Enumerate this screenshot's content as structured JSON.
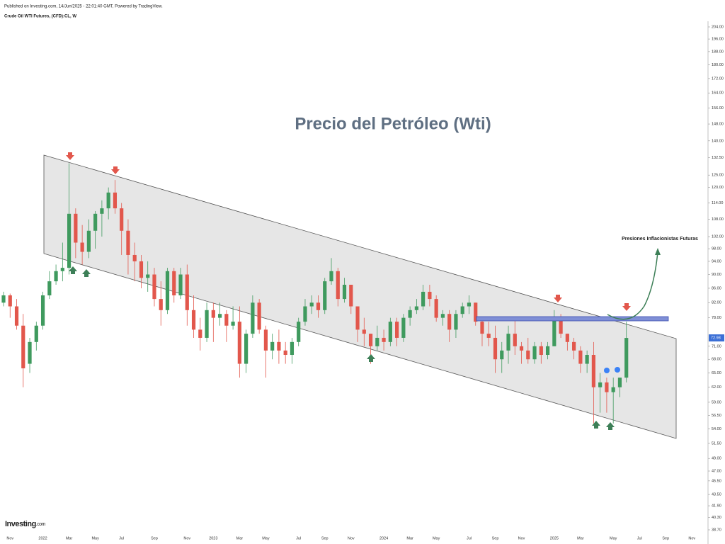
{
  "header": {
    "published": "Published on Investing.com, 14/Jun/2025 - 22:01:40 GMT, Powered by TradingView.",
    "instrument": "Crude Oil WTI Futures, (CFD):CL, W"
  },
  "logo": {
    "name": "Investing",
    "suffix": ".com"
  },
  "chart_data": {
    "type": "candlestick",
    "title": "Precio del Petróleo (Wti)",
    "annotation": "Presiones Inflacionistas Futuras",
    "log_scale": true,
    "up_color": "#3f9a5e",
    "down_color": "#e2574c",
    "ylim": [
      38.7,
      204
    ],
    "yticks": [
      {
        "value": 204,
        "label": "204.00"
      },
      {
        "value": 196,
        "label": "196.00"
      },
      {
        "value": 188,
        "label": "188.00"
      },
      {
        "value": 180,
        "label": "180.00"
      },
      {
        "value": 172,
        "label": "172.00"
      },
      {
        "value": 164,
        "label": "164.00"
      },
      {
        "value": 156,
        "label": "156.00"
      },
      {
        "value": 148,
        "label": "148.00"
      },
      {
        "value": 140,
        "label": "140.00"
      },
      {
        "value": 132.5,
        "label": "132.50"
      },
      {
        "value": 125,
        "label": "125.00"
      },
      {
        "value": 120,
        "label": "120.00"
      },
      {
        "value": 114,
        "label": "114.00"
      },
      {
        "value": 108,
        "label": "108.00"
      },
      {
        "value": 102,
        "label": "102.00"
      },
      {
        "value": 98,
        "label": "98.00"
      },
      {
        "value": 94,
        "label": "94.00"
      },
      {
        "value": 90,
        "label": "90.00"
      },
      {
        "value": 86,
        "label": "86.00"
      },
      {
        "value": 82,
        "label": "82.00"
      },
      {
        "value": 78,
        "label": "78.00"
      },
      {
        "value": 71,
        "label": "71.00"
      },
      {
        "value": 68,
        "label": "68.00"
      },
      {
        "value": 65,
        "label": "65.00"
      },
      {
        "value": 62,
        "label": "62.00"
      },
      {
        "value": 59,
        "label": "59.00"
      },
      {
        "value": 56.5,
        "label": "56.50"
      },
      {
        "value": 54,
        "label": "54.00"
      },
      {
        "value": 51.5,
        "label": "51.50"
      },
      {
        "value": 49,
        "label": "49.00"
      },
      {
        "value": 47,
        "label": "47.00"
      },
      {
        "value": 45.5,
        "label": "45.50"
      },
      {
        "value": 43.5,
        "label": "43.50"
      },
      {
        "value": 41.9,
        "label": "41.90"
      },
      {
        "value": 40.3,
        "label": "40.30"
      },
      {
        "value": 38.7,
        "label": "38.70"
      }
    ],
    "categories": [
      null,
      "Nov",
      null,
      null,
      null,
      null,
      "2022",
      null,
      null,
      null,
      "Mar",
      null,
      null,
      null,
      "May",
      null,
      null,
      null,
      "Jul",
      null,
      null,
      null,
      null,
      "Sep",
      null,
      null,
      null,
      null,
      "Nov",
      null,
      null,
      null,
      "2023",
      null,
      null,
      null,
      "Mar",
      null,
      null,
      null,
      "May",
      null,
      null,
      null,
      null,
      "Jul",
      null,
      null,
      null,
      "Sep",
      null,
      null,
      null,
      "Nov",
      null,
      null,
      null,
      null,
      "2024",
      null,
      null,
      null,
      "Mar",
      null,
      null,
      null,
      "May",
      null,
      null,
      null,
      null,
      "Jul",
      null,
      null,
      null,
      "Sep",
      null,
      null,
      null,
      "Nov",
      null,
      null,
      null,
      null,
      "2025",
      null,
      null,
      null,
      "Mar",
      null,
      null,
      null,
      null,
      "May",
      null,
      null,
      null,
      "Jul",
      null,
      null,
      null,
      "Sep",
      null,
      null,
      null,
      "Nov"
    ],
    "open": [
      82,
      84,
      81,
      76,
      67,
      72,
      76,
      84,
      88,
      91,
      92,
      110,
      100,
      97,
      104,
      110,
      112,
      118,
      112,
      104,
      96,
      94,
      89,
      90,
      83,
      80,
      91,
      84,
      90,
      80,
      75,
      73,
      80,
      78,
      79,
      76,
      77,
      67,
      74,
      82,
      75,
      70,
      72,
      70,
      69,
      72,
      77,
      81,
      82,
      80,
      88,
      91,
      83,
      87,
      81,
      75,
      74,
      71,
      73,
      72,
      77,
      73,
      78,
      80,
      81,
      85,
      83,
      78,
      79,
      75,
      79,
      81,
      82,
      77,
      74,
      73,
      68,
      70,
      74,
      71,
      70,
      68,
      71,
      69,
      71,
      78,
      74,
      72,
      70,
      67,
      69,
      62,
      63,
      61,
      62,
      64,
      null,
      null,
      null,
      null,
      null,
      null,
      null,
      null,
      null,
      null
    ],
    "high": [
      85,
      84.5,
      83,
      79,
      73,
      77,
      85,
      91,
      93,
      100,
      130,
      112,
      106,
      108,
      111,
      115,
      120,
      123,
      114,
      108,
      100,
      96,
      94,
      92,
      88,
      92,
      92,
      92,
      93,
      84,
      78,
      82,
      82,
      82,
      80,
      81,
      81,
      75,
      84,
      83,
      76,
      74,
      75,
      72,
      73,
      78,
      83,
      84,
      84,
      89,
      95,
      92,
      89,
      87,
      81,
      78,
      74,
      76,
      75,
      78,
      78,
      79,
      81,
      83,
      87,
      87,
      84,
      80,
      80,
      80,
      82,
      84,
      82,
      78,
      77,
      76,
      72,
      76,
      78,
      72,
      73,
      72,
      72,
      72,
      80,
      79,
      74,
      73,
      71,
      70,
      72,
      65,
      64,
      64,
      64,
      77,
      null,
      null,
      null,
      null,
      null,
      null,
      null,
      null,
      null,
      null
    ],
    "low": [
      81,
      78,
      75,
      62,
      65,
      70,
      75,
      83,
      87,
      88,
      90,
      95,
      93,
      95,
      98,
      102,
      108,
      110,
      96,
      90,
      88,
      86,
      85,
      81,
      76,
      79,
      82,
      83,
      76,
      73,
      70,
      72,
      72,
      76,
      72,
      75,
      64,
      65,
      73,
      74,
      64,
      68,
      67,
      67,
      67,
      71,
      76,
      79,
      78,
      79,
      87,
      81,
      82,
      79,
      72,
      71,
      67,
      70,
      70,
      71,
      71,
      72,
      76,
      79,
      80,
      81,
      77,
      76,
      72,
      73,
      78,
      79,
      76,
      71,
      71,
      65,
      65,
      67,
      69,
      67,
      67,
      67,
      67,
      68,
      71,
      73,
      70,
      68,
      65,
      65,
      55,
      57,
      57,
      55,
      60,
      63,
      null,
      null,
      null,
      null,
      null,
      null,
      null,
      null,
      null,
      null
    ],
    "close": [
      84,
      81,
      76,
      66,
      72,
      76,
      84,
      88,
      91,
      92,
      110,
      100,
      97,
      104,
      110,
      112,
      118,
      112,
      104,
      96,
      94,
      89,
      90,
      83,
      80,
      91,
      84,
      90,
      80,
      75,
      73,
      80,
      78,
      79,
      76,
      77,
      67,
      74,
      82,
      75,
      70,
      72,
      70,
      69,
      72,
      77,
      81,
      82,
      80,
      88,
      91,
      83,
      87,
      81,
      75,
      74,
      71,
      73,
      72,
      77,
      73,
      78,
      80,
      81,
      85,
      83,
      78,
      79,
      75,
      79,
      81,
      82,
      77,
      74,
      73,
      68,
      70,
      74,
      71,
      70,
      68,
      71,
      69,
      71,
      78,
      74,
      72,
      70,
      67,
      69,
      62,
      63,
      61,
      62,
      64,
      72.98,
      null,
      null,
      null,
      null,
      null,
      null,
      null,
      null,
      null,
      null
    ]
  }
}
